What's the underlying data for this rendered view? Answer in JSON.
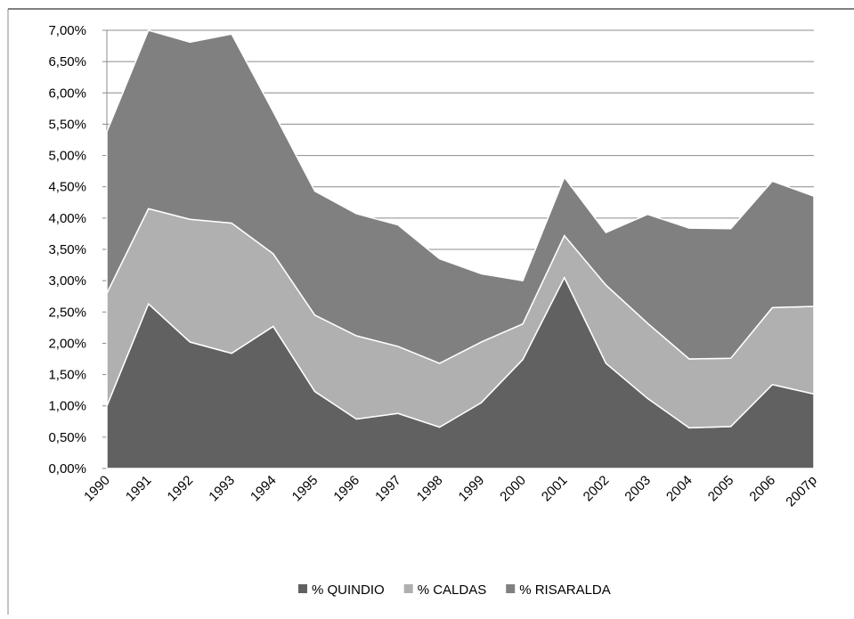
{
  "chart_data": {
    "type": "stacked_area",
    "categories": [
      "1990",
      "1991",
      "1992",
      "1993",
      "1994",
      "1995",
      "1996",
      "1997",
      "1998",
      "1999",
      "2000",
      "2001",
      "2002",
      "2003",
      "2004",
      "2005",
      "2006",
      "2007p"
    ],
    "series": [
      {
        "name": "% QUINDIO",
        "color": "#616161",
        "values": [
          1.0,
          2.63,
          2.02,
          1.84,
          2.27,
          1.23,
          0.79,
          0.88,
          0.66,
          1.05,
          1.74,
          3.05,
          1.68,
          1.12,
          0.65,
          0.67,
          1.34,
          1.19
        ]
      },
      {
        "name": "% CALDAS",
        "color": "#b0b0b0",
        "values": [
          1.8,
          1.52,
          1.96,
          2.08,
          1.16,
          1.22,
          1.33,
          1.07,
          1.02,
          0.97,
          0.57,
          0.67,
          1.25,
          1.2,
          1.1,
          1.09,
          1.23,
          1.4
        ]
      },
      {
        "name": "% RISARALDA",
        "color": "#808080",
        "values": [
          2.58,
          2.85,
          2.83,
          3.02,
          2.27,
          1.98,
          1.95,
          1.94,
          1.67,
          1.09,
          0.69,
          0.93,
          0.84,
          1.74,
          2.09,
          2.07,
          2.02,
          1.76
        ]
      }
    ],
    "ylim": [
      0,
      7
    ],
    "yticks": [
      {
        "value": 0,
        "label": "0,00%"
      },
      {
        "value": 0.5,
        "label": "0,50%"
      },
      {
        "value": 1,
        "label": "1,00%"
      },
      {
        "value": 1.5,
        "label": "1,50%"
      },
      {
        "value": 2,
        "label": "2,00%"
      },
      {
        "value": 2.5,
        "label": "2,50%"
      },
      {
        "value": 3,
        "label": "3,00%"
      },
      {
        "value": 3.5,
        "label": "3,50%"
      },
      {
        "value": 4,
        "label": "4,00%"
      },
      {
        "value": 4.5,
        "label": "4,50%"
      },
      {
        "value": 5,
        "label": "5,00%"
      },
      {
        "value": 5.5,
        "label": "5,50%"
      },
      {
        "value": 6,
        "label": "6,00%"
      },
      {
        "value": 6.5,
        "label": "6,50%"
      },
      {
        "value": 7,
        "label": "7,00%"
      }
    ],
    "grid": true,
    "legend": "bottom"
  }
}
